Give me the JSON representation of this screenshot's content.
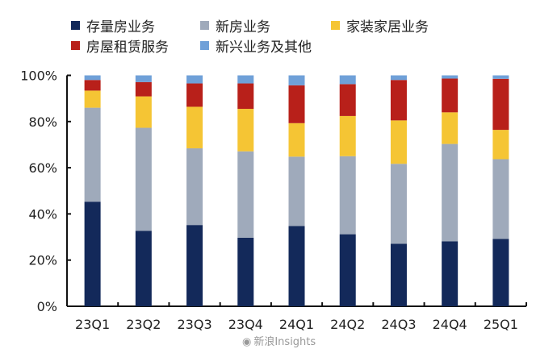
{
  "chart_data": {
    "type": "bar",
    "stacked": true,
    "categories": [
      "23Q1",
      "23Q2",
      "23Q3",
      "23Q4",
      "24Q1",
      "24Q2",
      "24Q3",
      "24Q4",
      "25Q1"
    ],
    "series": [
      {
        "name": "存量房业务",
        "color": "#13295a",
        "values": [
          45.3,
          32.7,
          35.2,
          29.7,
          34.8,
          31.2,
          27.1,
          28.1,
          29.2
        ]
      },
      {
        "name": "新房业务",
        "color": "#9faabb",
        "values": [
          40.7,
          44.6,
          33.2,
          37.4,
          30.0,
          33.8,
          34.6,
          42.2,
          34.5
        ]
      },
      {
        "name": "家装家居业务",
        "color": "#f5c534",
        "values": [
          7.4,
          13.6,
          18.0,
          18.4,
          14.5,
          17.4,
          18.8,
          13.7,
          12.7
        ]
      },
      {
        "name": "房屋租赁服务",
        "color": "#b8201a",
        "values": [
          4.6,
          6.2,
          10.1,
          11.0,
          16.4,
          13.8,
          17.5,
          14.6,
          22.1
        ]
      },
      {
        "name": "新兴业务及其他",
        "color": "#6fa0d8",
        "values": [
          2.0,
          2.9,
          3.5,
          3.5,
          4.3,
          3.8,
          2.0,
          1.4,
          1.5
        ]
      }
    ],
    "yticks": [
      "0%",
      "20%",
      "40%",
      "60%",
      "80%",
      "100%"
    ],
    "ylim": [
      0,
      100
    ],
    "grid": false,
    "legend_position": "top"
  },
  "watermark": "新浪Insights"
}
